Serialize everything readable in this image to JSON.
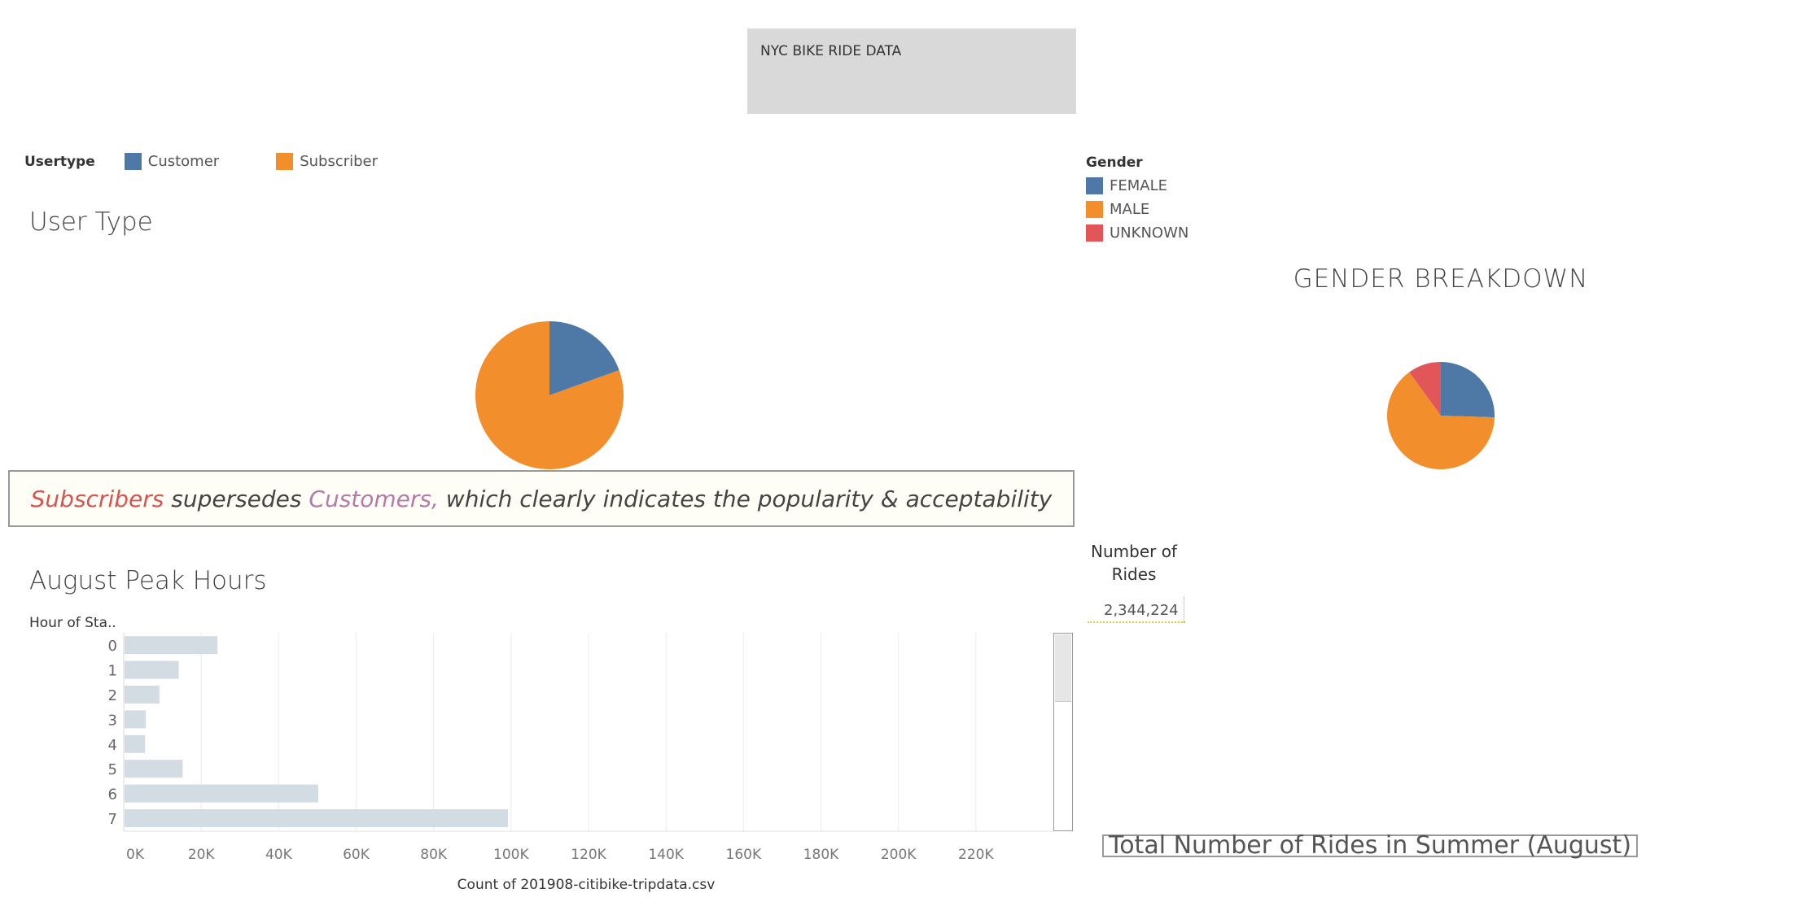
{
  "dashboard": {
    "title": "NYC BIKE RIDE DATA"
  },
  "usertype_legend": {
    "title": "Usertype",
    "items": [
      {
        "label": "Customer",
        "color": "#4e79a7"
      },
      {
        "label": "Subscriber",
        "color": "#f28e2b"
      }
    ]
  },
  "gender_legend": {
    "title": "Gender",
    "items": [
      {
        "label": "FEMALE",
        "color": "#4e79a7"
      },
      {
        "label": "MALE",
        "color": "#f28e2b"
      },
      {
        "label": "UNKNOWN",
        "color": "#e15759"
      }
    ]
  },
  "callout": {
    "part1": "Subscribers",
    "part2": " supersedes ",
    "part3": "Customers,",
    "part4": " which clearly indicates the popularity & acceptability"
  },
  "kpi": {
    "header_line1": "Number of",
    "header_line2": "Rides",
    "value": "2,344,224"
  },
  "footer": {
    "caption": "Total Number of Rides in Summer (August)"
  },
  "chart_data": [
    {
      "type": "pie",
      "title": "User Type",
      "slices": [
        {
          "label": "Customer",
          "value": 19.5,
          "color": "#4e79a7"
        },
        {
          "label": "Subscriber",
          "value": 80.5,
          "color": "#f28e2b"
        }
      ]
    },
    {
      "type": "pie",
      "title": "GENDER BREAKDOWN",
      "slices": [
        {
          "label": "FEMALE",
          "value": 25.5,
          "color": "#4e79a7"
        },
        {
          "label": "MALE",
          "value": 64.5,
          "color": "#f28e2b"
        },
        {
          "label": "UNKNOWN",
          "value": 10.0,
          "color": "#e15759"
        }
      ]
    },
    {
      "type": "bar",
      "orientation": "horizontal",
      "title": "August Peak Hours",
      "ylabel": "Hour of Sta..",
      "xlabel": "Count of 201908-citibike-tripdata.csv",
      "categories": [
        "0",
        "1",
        "2",
        "3",
        "4",
        "5",
        "6",
        "7"
      ],
      "values": [
        24000,
        14000,
        9000,
        5500,
        5300,
        15000,
        50000,
        99000
      ],
      "xlim": [
        0,
        240000
      ],
      "xticks": [
        "0K",
        "20K",
        "40K",
        "60K",
        "80K",
        "100K",
        "120K",
        "140K",
        "160K",
        "180K",
        "200K",
        "220K"
      ],
      "bar_color": "#d3dbe3",
      "grid": true
    }
  ]
}
